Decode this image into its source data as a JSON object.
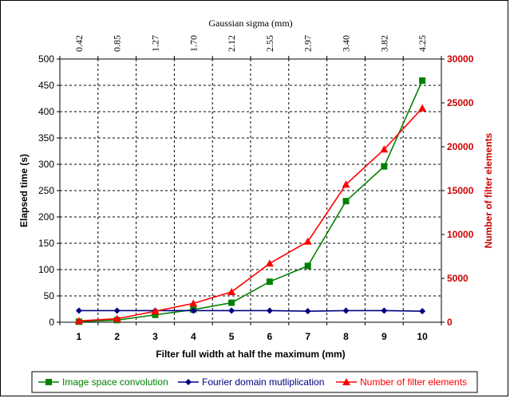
{
  "chart_data": {
    "type": "line",
    "x": [
      1,
      2,
      3,
      4,
      5,
      6,
      7,
      8,
      9,
      10
    ],
    "xlabel": "Filter full width at half the maximum (mm)",
    "top_axis": {
      "label": "Gaussian sigma (mm)",
      "ticks": [
        "0.42",
        "0.85",
        "1.27",
        "1.70",
        "2.12",
        "2.55",
        "2.97",
        "3.40",
        "3.82",
        "4.25"
      ]
    },
    "ylabel_left": "Elapsed time (s)",
    "ylim_left": [
      0,
      500
    ],
    "yticks_left": [
      0,
      50,
      100,
      150,
      200,
      250,
      300,
      350,
      400,
      450,
      500
    ],
    "ylabel_right": "Number of filter elements",
    "ylim_right": [
      0,
      30000
    ],
    "yticks_right": [
      0,
      5000,
      10000,
      15000,
      20000,
      25000,
      30000
    ],
    "grid": true,
    "legend_position": "bottom",
    "series": [
      {
        "name": "Image space convolution",
        "axis": "left",
        "color": "#008000",
        "marker": "square",
        "values": [
          1,
          4,
          14,
          24,
          37,
          77,
          107,
          230,
          296,
          459
        ]
      },
      {
        "name": "Fourier domain mutliplication",
        "axis": "left",
        "color": "#000080",
        "marker": "diamond",
        "values": [
          22,
          22,
          22,
          22,
          22,
          22,
          21,
          22,
          22,
          21
        ]
      },
      {
        "name": "Number of filter elements",
        "axis": "right",
        "color": "#ff0000",
        "marker": "triangle",
        "values": [
          150,
          400,
          1250,
          2150,
          3450,
          6700,
          9200,
          15700,
          19700,
          24400
        ]
      }
    ]
  }
}
